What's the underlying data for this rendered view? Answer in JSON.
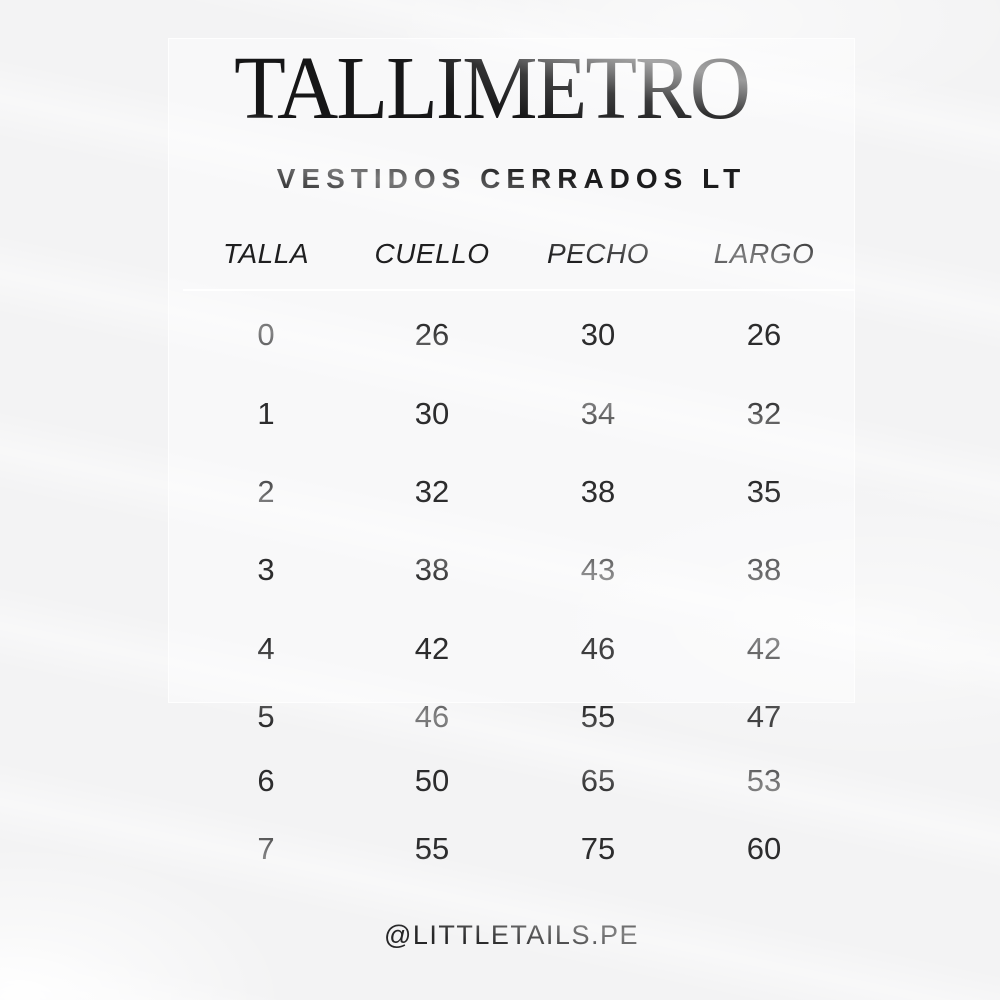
{
  "page": {
    "title": "TALLIMETRO",
    "subtitle": "VESTIDOS CERRADOS LT",
    "footer": "@LITTLETAILS.PE"
  },
  "colors": {
    "background": "#f3f3f4",
    "panel": "rgba(255,255,255,0.42)",
    "text": "#1e1e1f",
    "divider": "#ffffff"
  },
  "table": {
    "headers": [
      "TALLA",
      "CUELLO",
      "PECHO",
      "LARGO"
    ],
    "rows": [
      [
        "0",
        "26",
        "30",
        "26"
      ],
      [
        "1",
        "30",
        "34",
        "32"
      ],
      [
        "2",
        "32",
        "38",
        "35"
      ],
      [
        "3",
        "38",
        "43",
        "38"
      ],
      [
        "4",
        "42",
        "46",
        "42"
      ],
      [
        "5",
        "46",
        "55",
        "47"
      ],
      [
        "6",
        "50",
        "65",
        "53"
      ],
      [
        "7",
        "55",
        "75",
        "60"
      ]
    ]
  },
  "chart_data": {
    "type": "table",
    "title": "TALLIMETRO",
    "subtitle": "VESTIDOS CERRADOS LT",
    "columns": [
      "TALLA",
      "CUELLO",
      "PECHO",
      "LARGO"
    ],
    "rows": [
      [
        0,
        26,
        30,
        26
      ],
      [
        1,
        30,
        34,
        32
      ],
      [
        2,
        32,
        38,
        35
      ],
      [
        3,
        38,
        43,
        38
      ],
      [
        4,
        42,
        46,
        42
      ],
      [
        5,
        46,
        55,
        47
      ],
      [
        6,
        50,
        65,
        53
      ],
      [
        7,
        55,
        75,
        60
      ]
    ],
    "footer": "@LITTLETAILS.PE"
  }
}
